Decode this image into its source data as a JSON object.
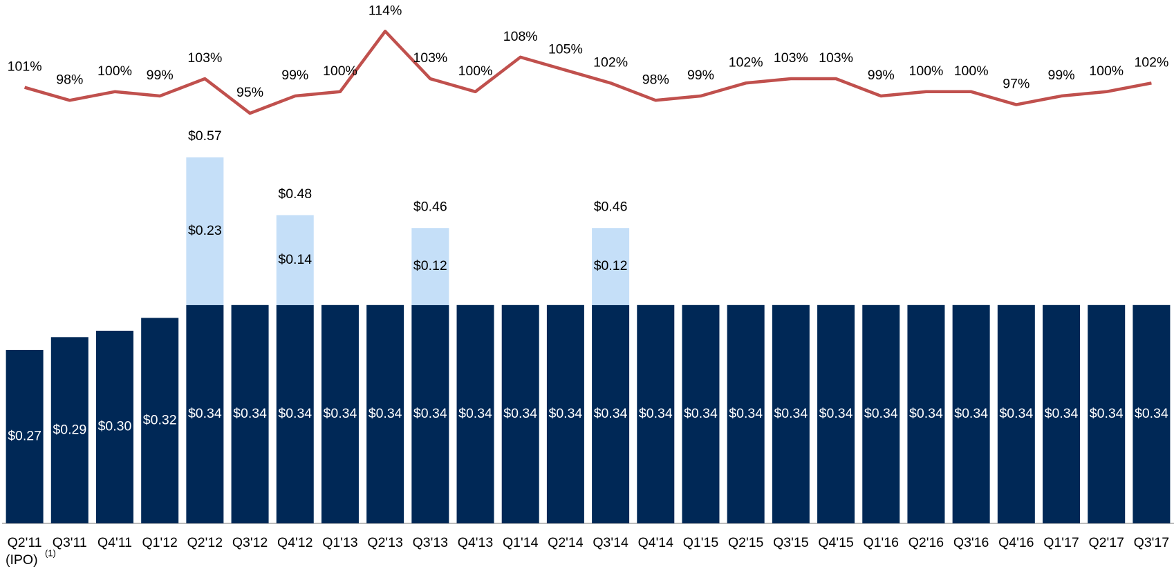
{
  "chart_data": {
    "type": "bar",
    "categories": [
      "Q2'11",
      "Q3'11",
      "Q4'11",
      "Q1'12",
      "Q2'12",
      "Q3'12",
      "Q4'12",
      "Q1'13",
      "Q2'13",
      "Q3'13",
      "Q4'13",
      "Q1'14",
      "Q2'14",
      "Q3'14",
      "Q4'14",
      "Q1'15",
      "Q2'15",
      "Q3'15",
      "Q4'15",
      "Q1'16",
      "Q2'16",
      "Q3'16",
      "Q4'16",
      "Q1'17",
      "Q2'17",
      "Q3'17"
    ],
    "annotations": [
      "(IPO)",
      "(1)"
    ],
    "stacked": true,
    "ylim": [
      0,
      0.8
    ],
    "y2lim": [
      0,
      119
    ],
    "series": [
      {
        "color": "#002856",
        "values": [
          0.27,
          0.29,
          0.3,
          0.32,
          0.34,
          0.34,
          0.34,
          0.34,
          0.34,
          0.34,
          0.34,
          0.34,
          0.34,
          0.34,
          0.34,
          0.34,
          0.34,
          0.34,
          0.34,
          0.34,
          0.34,
          0.34,
          0.34,
          0.34,
          0.34,
          0.34
        ],
        "value_labels": [
          "$0.27",
          "$0.29",
          "$0.30",
          "$0.32",
          "$0.34",
          "$0.34",
          "$0.34",
          "$0.34",
          "$0.34",
          "$0.34",
          "$0.34",
          "$0.34",
          "$0.34",
          "$0.34",
          "$0.34",
          "$0.34",
          "$0.34",
          "$0.34",
          "$0.34",
          "$0.34",
          "$0.34",
          "$0.34",
          "$0.34",
          "$0.34",
          "$0.34",
          "$0.34"
        ]
      },
      {
        "color": "#c5dff8",
        "values": [
          null,
          null,
          null,
          null,
          0.23,
          null,
          0.14,
          null,
          null,
          0.12,
          null,
          null,
          null,
          0.12,
          null,
          null,
          null,
          null,
          null,
          null,
          null,
          null,
          null,
          null,
          null,
          null
        ],
        "value_labels": [
          null,
          null,
          null,
          null,
          "$0.23",
          null,
          "$0.14",
          null,
          null,
          "$0.12",
          null,
          null,
          null,
          "$0.12",
          null,
          null,
          null,
          null,
          null,
          null,
          null,
          null,
          null,
          null,
          null,
          null
        ]
      },
      {
        "type": "line",
        "axis": "y2",
        "color": "#c0504d",
        "values": [
          101,
          98,
          100,
          99,
          103,
          95,
          99,
          100,
          114,
          103,
          100,
          108,
          105,
          102,
          98,
          99,
          102,
          103,
          103,
          99,
          100,
          100,
          97,
          99,
          100,
          102
        ],
        "value_labels": [
          "101%",
          "98%",
          "100%",
          "99%",
          "103%",
          "95%",
          "99%",
          "100%",
          "114%",
          "103%",
          "100%",
          "108%",
          "105%",
          "102%",
          "98%",
          "99%",
          "102%",
          "103%",
          "103%",
          "99%",
          "100%",
          "100%",
          "97%",
          "99%",
          "100%",
          "102%"
        ]
      }
    ],
    "totals": {
      "values": [
        null,
        null,
        null,
        null,
        0.57,
        null,
        0.48,
        null,
        null,
        0.46,
        null,
        null,
        null,
        0.46,
        null,
        null,
        null,
        null,
        null,
        null,
        null,
        null,
        null,
        null,
        null,
        null
      ],
      "value_labels": [
        null,
        null,
        null,
        null,
        "$0.57",
        null,
        "$0.48",
        null,
        null,
        "$0.46",
        null,
        null,
        null,
        "$0.46",
        null,
        null,
        null,
        null,
        null,
        null,
        null,
        null,
        null,
        null,
        null,
        null
      ]
    }
  }
}
